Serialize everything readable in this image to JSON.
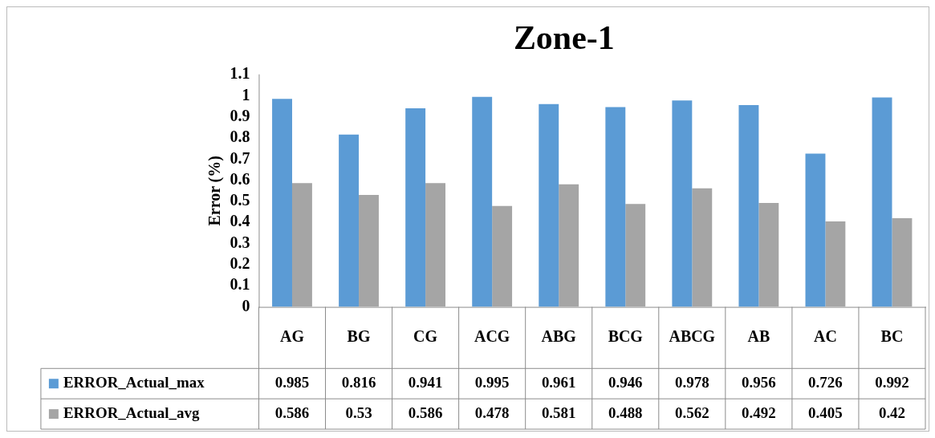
{
  "chart_data": {
    "type": "bar",
    "title": "Zone-1",
    "ylabel": "Error (%)",
    "categories": [
      "AG",
      "BG",
      "CG",
      "ACG",
      "ABG",
      "BCG",
      "ABCG",
      "AB",
      "AC",
      "BC"
    ],
    "series": [
      {
        "name": "ERROR_Actual_max",
        "color": "#5b9bd5",
        "values": [
          0.985,
          0.816,
          0.941,
          0.995,
          0.961,
          0.946,
          0.978,
          0.956,
          0.726,
          0.992
        ]
      },
      {
        "name": "ERROR_Actual_avg",
        "color": "#a5a5a5",
        "values": [
          0.586,
          0.53,
          0.586,
          0.478,
          0.581,
          0.488,
          0.562,
          0.492,
          0.405,
          0.42
        ]
      }
    ],
    "ylim": [
      0,
      1.1
    ],
    "yticks": [
      0,
      0.1,
      0.2,
      0.3,
      0.4,
      0.5,
      0.6,
      0.7,
      0.8,
      0.9,
      1,
      1.1
    ],
    "grid": false,
    "legend": "bottom",
    "data_labels": true
  }
}
